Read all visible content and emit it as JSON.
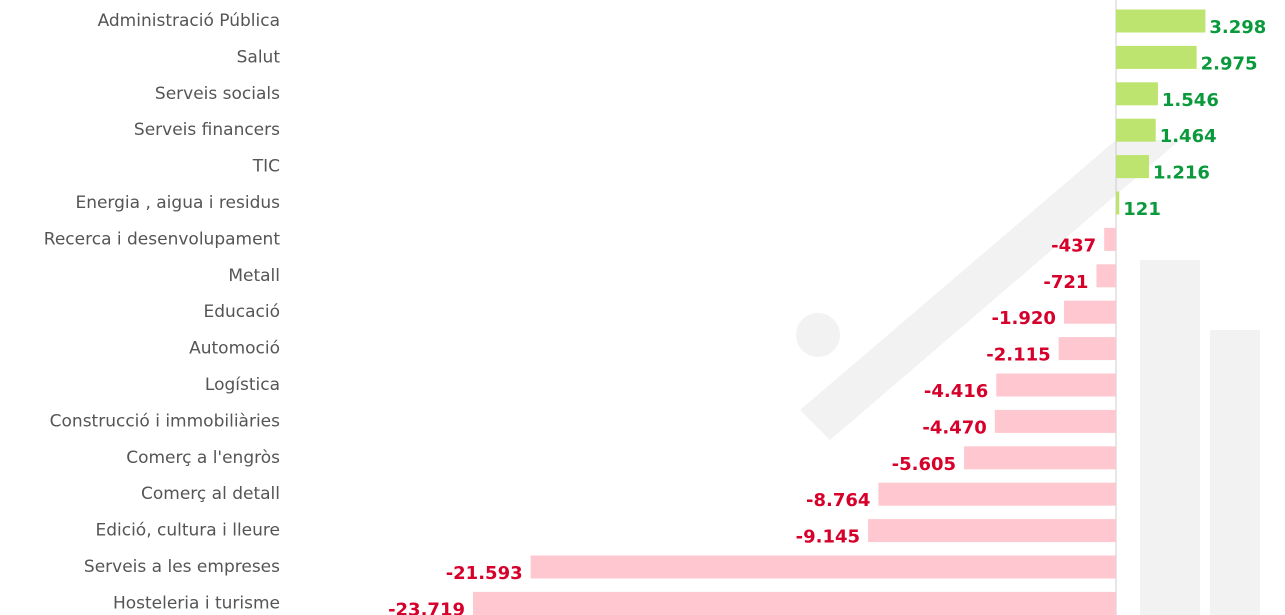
{
  "chart_data": {
    "type": "hbar",
    "categories": [
      "Administració Pública",
      "Salut",
      "Serveis socials",
      "Serveis financers",
      "TIC",
      "Energia , aigua i residus",
      "Recerca i desenvolupament",
      "Metall",
      "Educació",
      "Automoció",
      "Logística",
      "Construcció i immobiliàries",
      "Comerç a l'engròs",
      "Comerç al detall",
      "Edició, cultura i lleure",
      "Serveis a les empreses",
      "Hosteleria i turisme"
    ],
    "values": [
      3298,
      2975,
      1546,
      1464,
      1216,
      121,
      -437,
      -721,
      -1920,
      -2115,
      -4416,
      -4470,
      -5605,
      -8764,
      -9145,
      -21593,
      -23719
    ],
    "value_labels": [
      "3.298",
      "2.975",
      "1.546",
      "1.464",
      "1.216",
      "121",
      "-437",
      "-721",
      "-1.920",
      "-2.115",
      "-4.416",
      "-4.470",
      "-5.605",
      "-8.764",
      "-9.145",
      "-21.593",
      "-23.719"
    ],
    "positive_color": "#bde46f",
    "negative_color": "#ffc7d0",
    "positive_label_color": "#0a9a3c",
    "negative_label_color": "#d6002b"
  }
}
